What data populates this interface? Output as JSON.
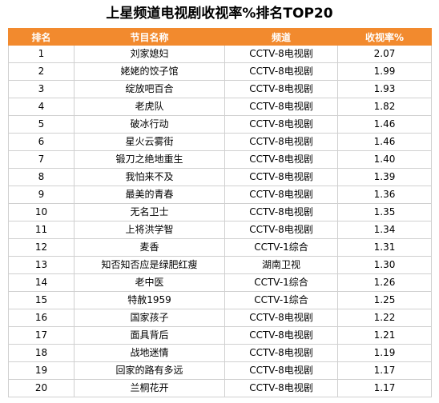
{
  "title": "上星频道电视剧收视率%排名TOP20",
  "colors": {
    "header_bg": "#f28a2e",
    "header_text": "#ffffff",
    "border": "#d0d0d0"
  },
  "columns": [
    "排名",
    "节目名称",
    "频道",
    "收视率%"
  ],
  "rows": [
    {
      "rank": "1",
      "name": "刘家媳妇",
      "channel": "CCTV-8电视剧",
      "rating": "2.07"
    },
    {
      "rank": "2",
      "name": "姥姥的饺子馆",
      "channel": "CCTV-8电视剧",
      "rating": "1.99"
    },
    {
      "rank": "3",
      "name": "绽放吧百合",
      "channel": "CCTV-8电视剧",
      "rating": "1.93"
    },
    {
      "rank": "4",
      "name": "老虎队",
      "channel": "CCTV-8电视剧",
      "rating": "1.82"
    },
    {
      "rank": "5",
      "name": "破冰行动",
      "channel": "CCTV-8电视剧",
      "rating": "1.46"
    },
    {
      "rank": "6",
      "name": "星火云雾街",
      "channel": "CCTV-8电视剧",
      "rating": "1.46"
    },
    {
      "rank": "7",
      "name": "锻刀之绝地重生",
      "channel": "CCTV-8电视剧",
      "rating": "1.40"
    },
    {
      "rank": "8",
      "name": "我怕来不及",
      "channel": "CCTV-8电视剧",
      "rating": "1.39"
    },
    {
      "rank": "9",
      "name": "最美的青春",
      "channel": "CCTV-8电视剧",
      "rating": "1.36"
    },
    {
      "rank": "10",
      "name": "无名卫士",
      "channel": "CCTV-8电视剧",
      "rating": "1.35"
    },
    {
      "rank": "11",
      "name": "上将洪学智",
      "channel": "CCTV-8电视剧",
      "rating": "1.34"
    },
    {
      "rank": "12",
      "name": "麦香",
      "channel": "CCTV-1综合",
      "rating": "1.31"
    },
    {
      "rank": "13",
      "name": "知否知否应是绿肥红瘦",
      "channel": "湖南卫视",
      "rating": "1.30"
    },
    {
      "rank": "14",
      "name": "老中医",
      "channel": "CCTV-1综合",
      "rating": "1.26"
    },
    {
      "rank": "15",
      "name": "特赦1959",
      "channel": "CCTV-1综合",
      "rating": "1.25"
    },
    {
      "rank": "16",
      "name": "国家孩子",
      "channel": "CCTV-8电视剧",
      "rating": "1.22"
    },
    {
      "rank": "17",
      "name": "面具背后",
      "channel": "CCTV-8电视剧",
      "rating": "1.21"
    },
    {
      "rank": "18",
      "name": "战地迷情",
      "channel": "CCTV-8电视剧",
      "rating": "1.19"
    },
    {
      "rank": "19",
      "name": "回家的路有多远",
      "channel": "CCTV-8电视剧",
      "rating": "1.17"
    },
    {
      "rank": "20",
      "name": "兰桐花开",
      "channel": "CCTV-8电视剧",
      "rating": "1.17"
    }
  ]
}
